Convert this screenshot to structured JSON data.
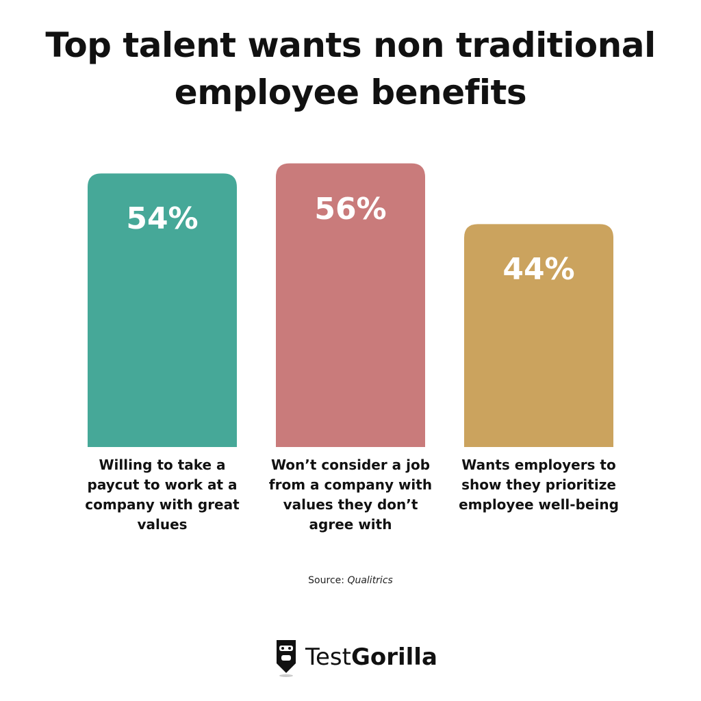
{
  "chart_data": {
    "type": "bar",
    "title": "Top talent wants non traditional employee benefits",
    "categories": [
      "Willing to take a paycut to work at a company with great values",
      "Won’t consider a job from a company with values they don’t agree with",
      "Wants employers to show they prioritize employee well-being"
    ],
    "values": [
      54,
      56,
      44
    ],
    "value_labels": [
      "54%",
      "56%",
      "44%"
    ],
    "colors": [
      "#46a898",
      "#c97b7b",
      "#cba35e"
    ],
    "source_label": "Source:",
    "source": "Qualitrics",
    "logo": {
      "prefix": "Test",
      "suffix": "Gorilla"
    }
  }
}
